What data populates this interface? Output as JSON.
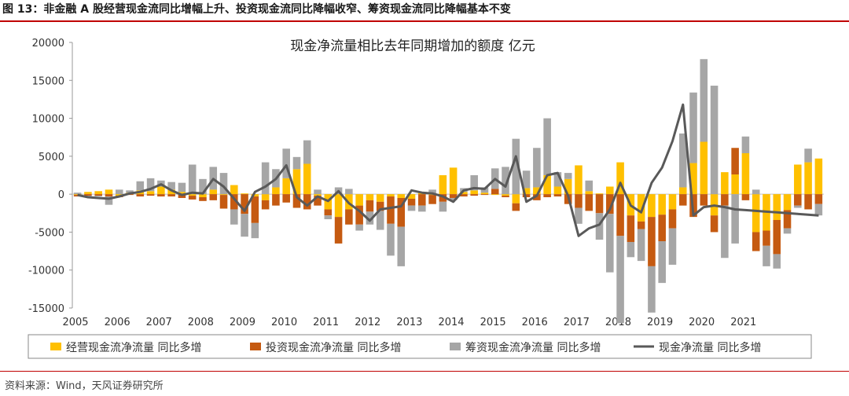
{
  "figure_title": "图 13：非金融 A 股经营现金流同比增幅上升、投资现金流同比降幅收窄、筹资现金流同比降幅基本不变",
  "source": "资料来源：Wind，天风证券研究所",
  "colors": {
    "operating": "#FFC000",
    "investing": "#C55A11",
    "financing": "#A6A6A6",
    "net": "#595959",
    "accent": "#C00000"
  },
  "chart_data": {
    "type": "bar",
    "title": "现金净流量相比去年同期增加的额度  亿元",
    "ylim": [
      -15000,
      20000
    ],
    "yticks": [
      20000,
      15000,
      10000,
      5000,
      0,
      -5000,
      -10000,
      -15000
    ],
    "xticks": [
      "2005",
      "2006",
      "2007",
      "2008",
      "2009",
      "2010",
      "2011",
      "2012",
      "2013",
      "2014",
      "2015",
      "2016",
      "2017",
      "2018",
      "2019",
      "2020",
      "2021"
    ],
    "start_year": 2005,
    "grid": false,
    "legend_position": "bottom",
    "series": [
      {
        "name": "经营现金流净流量 同比多增",
        "kind": "bar",
        "values": [
          -100,
          300,
          400,
          600,
          -200,
          200,
          500,
          400,
          1000,
          600,
          300,
          -200,
          -400,
          600,
          -100,
          1200,
          100,
          -300,
          -800,
          900,
          2100,
          3300,
          4000,
          -200,
          -2000,
          -3000,
          -2000,
          -1500,
          -800,
          -1000,
          -300,
          -500,
          -600,
          200,
          -100,
          2500,
          3500,
          300,
          500,
          200,
          -100,
          -200,
          -1200,
          800,
          900,
          2500,
          1000,
          2000,
          3800,
          400,
          100,
          1000,
          4200,
          -2800,
          -3600,
          -3000,
          -2700,
          -2000,
          900,
          4100,
          6900,
          -2800,
          2900,
          2600,
          5400,
          -5000,
          -4800,
          -3400,
          -2100,
          3900,
          4200,
          4700
        ]
      },
      {
        "name": "投资现金流净流量 同比多增",
        "kind": "bar",
        "values": [
          -200,
          -200,
          -200,
          -300,
          -200,
          -100,
          -300,
          -200,
          -300,
          -300,
          -500,
          -500,
          -500,
          -800,
          -1800,
          -2000,
          -2600,
          -3500,
          -1200,
          -1500,
          -1100,
          -1800,
          -2000,
          -1300,
          -800,
          -3500,
          -2000,
          -2500,
          -1500,
          -1200,
          -3600,
          -3800,
          -900,
          -1500,
          -1200,
          -1000,
          -500,
          -300,
          -200,
          -100,
          700,
          -200,
          -1000,
          -400,
          -800,
          -400,
          -300,
          -1300,
          -1800,
          -2200,
          -2500,
          -2600,
          -5500,
          -3500,
          -1000,
          -6500,
          -3500,
          -2500,
          -1500,
          -3000,
          -1500,
          -2200,
          -1500,
          3500,
          -800,
          -2500,
          -2000,
          -4500,
          -2400,
          -1500,
          -2000,
          -1300
        ]
      },
      {
        "name": "筹资现金流净流量 同比多增",
        "kind": "bar",
        "values": [
          200,
          -100,
          -100,
          -1100,
          600,
          300,
          1200,
          1700,
          800,
          1000,
          1200,
          3900,
          2000,
          3000,
          2800,
          -2000,
          -3000,
          -2000,
          4200,
          2400,
          3900,
          1600,
          3100,
          600,
          -500,
          900,
          700,
          -800,
          -1700,
          -2500,
          -4200,
          -5200,
          -700,
          -800,
          600,
          -1300,
          -300,
          500,
          2000,
          700,
          2700,
          3600,
          7300,
          2300,
          5200,
          7500,
          1900,
          800,
          -2100,
          1400,
          -3500,
          -7700,
          -11500,
          -2000,
          -4200,
          -6100,
          -5500,
          -4800,
          7100,
          9300,
          10900,
          14300,
          -6900,
          -6500,
          2200,
          600,
          -2700,
          -1900,
          -700,
          -300,
          1800,
          -1500
        ]
      },
      {
        "name": "现金净流量 同比多增",
        "kind": "line",
        "values": [
          -100,
          -400,
          -500,
          -600,
          -300,
          100,
          300,
          700,
          1300,
          500,
          -100,
          200,
          100,
          2000,
          1000,
          -600,
          -2200,
          300,
          1000,
          2000,
          3800,
          -400,
          -1500,
          -300,
          -900,
          400,
          -1200,
          -2200,
          -3500,
          -2000,
          -1800,
          -1600,
          500,
          200,
          100,
          -300,
          -1000,
          500,
          800,
          700,
          2000,
          1000,
          5000,
          -1000,
          -200,
          2500,
          2800,
          -200,
          -5500,
          -4500,
          -4000,
          -2000,
          1500,
          -1500,
          -2400,
          1500,
          3500,
          7000,
          11800,
          -2800,
          -1700,
          -1500,
          -1700,
          -2000,
          -2100,
          -2200,
          -2300,
          -2400,
          -2500,
          -2600,
          -2700,
          -2800
        ]
      }
    ]
  }
}
